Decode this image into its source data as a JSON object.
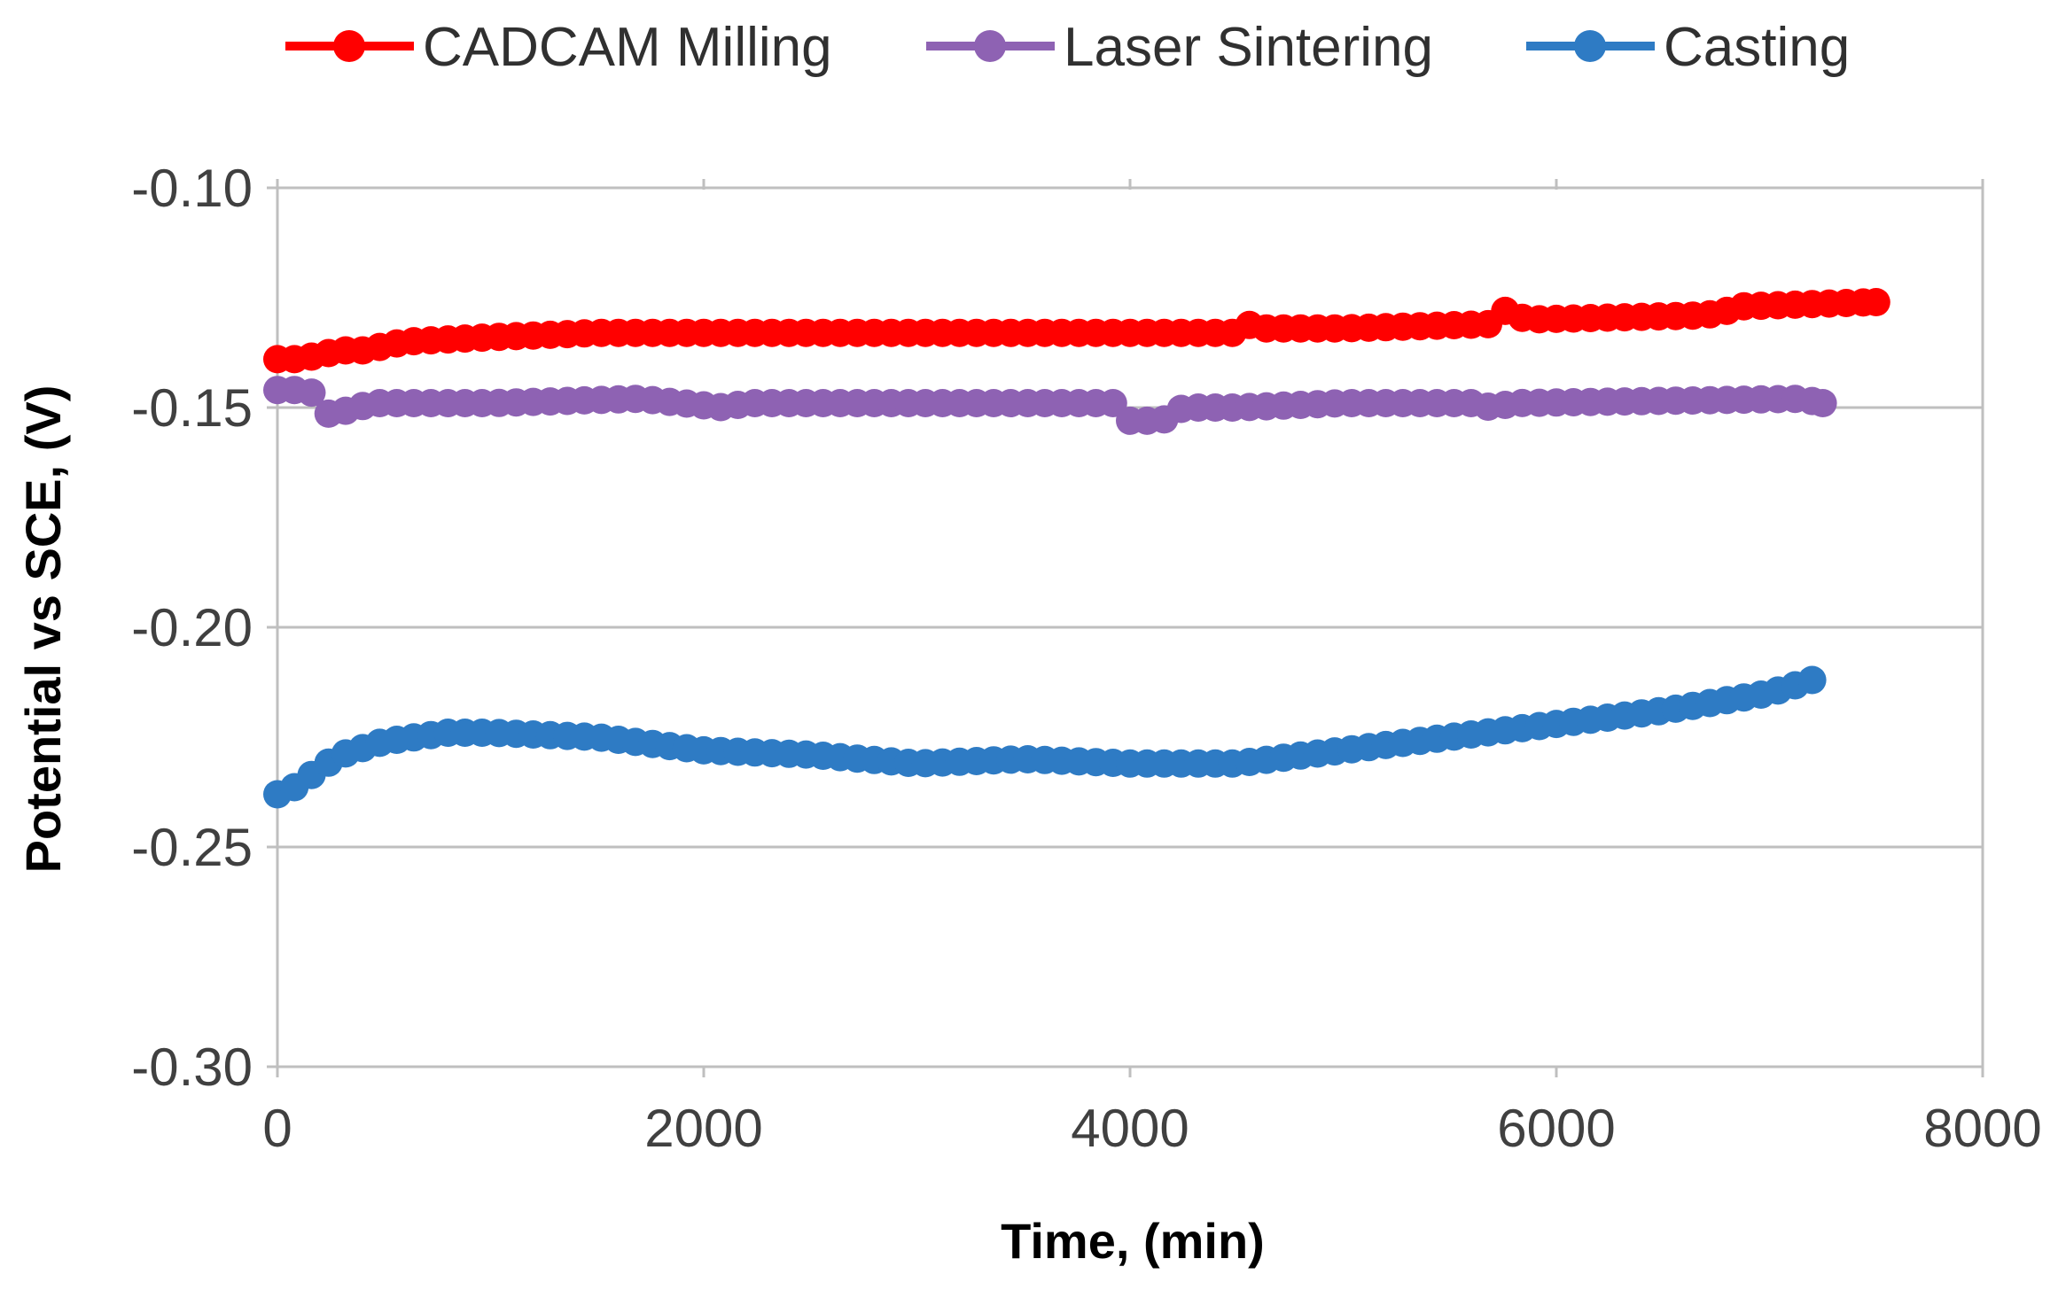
{
  "chart_data": {
    "type": "line",
    "title": "",
    "xlabel": "Time, (min)",
    "ylabel": "Potential vs SCE, (V)",
    "xlim": [
      0,
      8000
    ],
    "ylim": [
      -0.3,
      -0.1
    ],
    "xticks": [
      0,
      2000,
      4000,
      6000,
      8000
    ],
    "xtick_labels": [
      "0",
      "2000",
      "4000",
      "6000",
      "8000"
    ],
    "yticks": [
      -0.3,
      -0.25,
      -0.2,
      -0.15,
      -0.1
    ],
    "ytick_labels": [
      "-0.30",
      "-0.25",
      "-0.20",
      "-0.15",
      "-0.10"
    ],
    "grid": "horizontal",
    "legend_position": "top",
    "marker_interval_min": 80,
    "series": [
      {
        "name": "CADCAM Milling",
        "color": "#ff0000",
        "anchors": [
          [
            0,
            -0.139
          ],
          [
            100,
            -0.139
          ],
          [
            200,
            -0.138
          ],
          [
            300,
            -0.137
          ],
          [
            400,
            -0.137
          ],
          [
            600,
            -0.135
          ],
          [
            1000,
            -0.134
          ],
          [
            1500,
            -0.133
          ],
          [
            2000,
            -0.133
          ],
          [
            3000,
            -0.133
          ],
          [
            4000,
            -0.133
          ],
          [
            4500,
            -0.133
          ],
          [
            4550,
            -0.131
          ],
          [
            4600,
            -0.132
          ],
          [
            5000,
            -0.132
          ],
          [
            5700,
            -0.131
          ],
          [
            5780,
            -0.127
          ],
          [
            5850,
            -0.13
          ],
          [
            6700,
            -0.129
          ],
          [
            6800,
            -0.128
          ],
          [
            6850,
            -0.127
          ],
          [
            7500,
            -0.126
          ]
        ]
      },
      {
        "name": "Laser Sintering",
        "color": "#8e62b3",
        "anchors": [
          [
            0,
            -0.146
          ],
          [
            150,
            -0.146
          ],
          [
            250,
            -0.152
          ],
          [
            300,
            -0.151
          ],
          [
            450,
            -0.149
          ],
          [
            1000,
            -0.149
          ],
          [
            1700,
            -0.148
          ],
          [
            2100,
            -0.15
          ],
          [
            2200,
            -0.149
          ],
          [
            3000,
            -0.149
          ],
          [
            3900,
            -0.149
          ],
          [
            3950,
            -0.149
          ],
          [
            4000,
            -0.153
          ],
          [
            4150,
            -0.153
          ],
          [
            4250,
            -0.15
          ],
          [
            4500,
            -0.15
          ],
          [
            5000,
            -0.149
          ],
          [
            5600,
            -0.149
          ],
          [
            5700,
            -0.15
          ],
          [
            5800,
            -0.149
          ],
          [
            7150,
            -0.148
          ],
          [
            7250,
            -0.149
          ]
        ]
      },
      {
        "name": "Casting",
        "color": "#2e7bc4",
        "anchors": [
          [
            0,
            -0.238
          ],
          [
            100,
            -0.236
          ],
          [
            200,
            -0.232
          ],
          [
            300,
            -0.229
          ],
          [
            500,
            -0.226
          ],
          [
            800,
            -0.224
          ],
          [
            1000,
            -0.224
          ],
          [
            1500,
            -0.225
          ],
          [
            2000,
            -0.228
          ],
          [
            2500,
            -0.229
          ],
          [
            3000,
            -0.231
          ],
          [
            3500,
            -0.23
          ],
          [
            4000,
            -0.231
          ],
          [
            4500,
            -0.231
          ],
          [
            5000,
            -0.228
          ],
          [
            5500,
            -0.225
          ],
          [
            6000,
            -0.222
          ],
          [
            6500,
            -0.219
          ],
          [
            7000,
            -0.215
          ],
          [
            7200,
            -0.212
          ]
        ]
      }
    ]
  }
}
